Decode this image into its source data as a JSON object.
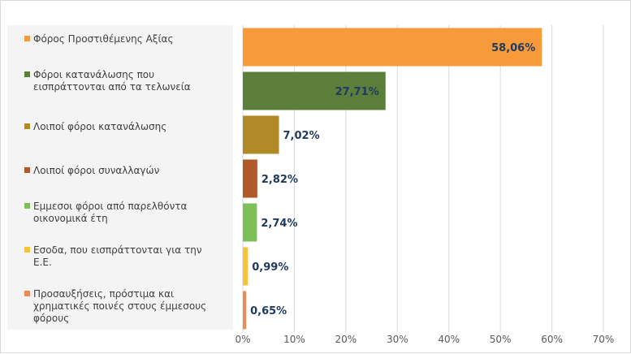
{
  "chart_data": {
    "type": "bar",
    "orientation": "horizontal",
    "categories": [
      "Φόρος Προστιθέμενης Αξίας",
      "Φόροι κατανάλωσης που εισπράττονται από τα τελωνεία",
      "Λοιποί φόροι κατανάλωσης",
      "Λοιποί φόροι συναλλαγών",
      "Εμμεσοι φόροι από παρελθόντα οικονομικά έτη",
      "Εσοδα, που εισπράττονται για την Ε.Ε.",
      "Προσαυξήσεις, πρόστιμα και χρηματικές ποινές στους έμμεσους φόρους"
    ],
    "category_lines": [
      [
        "Φόρος Προστιθέμενης Αξίας"
      ],
      [
        "Φόροι κατανάλωσης που",
        "εισπράττονται από τα τελωνεία"
      ],
      [
        "Λοιποί φόροι κατανάλωσης"
      ],
      [
        "Λοιποί φόροι συναλλαγών"
      ],
      [
        "Εμμεσοι φόροι από παρελθόντα",
        "οικονομικά έτη"
      ],
      [
        "Εσοδα, που εισπράττονται για την",
        "Ε.Ε."
      ],
      [
        "Προσαυξήσεις, πρόστιμα και",
        "χρηματικές ποινές στους έμμεσους",
        "φόρους"
      ]
    ],
    "values": [
      58.06,
      27.71,
      7.02,
      2.82,
      2.74,
      0.99,
      0.65
    ],
    "value_labels": [
      "58,06%",
      "27,71%",
      "7,02%",
      "2,82%",
      "2,74%",
      "0,99%",
      "0,65%"
    ],
    "colors": [
      "#f79b3a",
      "#5b7f3a",
      "#b08a26",
      "#b0592a",
      "#7fbf5a",
      "#f5c43a",
      "#ee8a55"
    ],
    "xlim": [
      0,
      70
    ],
    "x_ticks": [
      0,
      10,
      20,
      30,
      40,
      50,
      60,
      70
    ],
    "x_tick_labels": [
      "0%",
      "10%",
      "20%",
      "30%",
      "40%",
      "50%",
      "60%",
      "70%"
    ],
    "grid": "vertical",
    "legend": "left",
    "title": "",
    "xlabel": "",
    "ylabel": ""
  }
}
